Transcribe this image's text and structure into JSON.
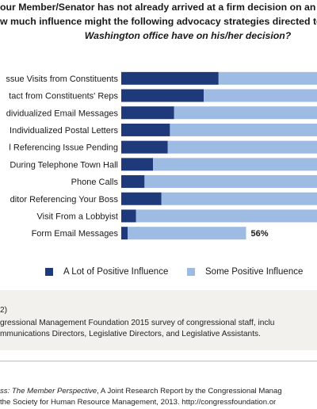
{
  "title": {
    "line1": "our Member/Senator has not already arrived at a firm decision on an i",
    "line2": "w much influence might the following advocacy strategies directed to",
    "line3": "Washington office have on his/her decision?"
  },
  "chart_data": {
    "type": "bar",
    "orientation": "horizontal",
    "stacked": true,
    "categories": [
      "ssue Visits from Constituents",
      "tact from Constituents' Reps",
      "dividualized Email Messages",
      "Individualized Postal Letters",
      "l Referencing Issue Pending",
      "During Telephone Town Hall",
      "Phone Calls",
      "ditor Referencing Your Boss",
      "Visit From a Lobbyist",
      "Form Email Messages"
    ],
    "series": [
      {
        "name": "A Lot of Positive Influence",
        "color": "#1f3a7a",
        "values": [
          46,
          39,
          25,
          23,
          22,
          15,
          11,
          19,
          7,
          3
        ]
      },
      {
        "name": "Some Positive Influence",
        "color": "#9dbbe3",
        "values": [
          54,
          61,
          75,
          77,
          78,
          85,
          89,
          81,
          93,
          56
        ]
      }
    ],
    "data_labels": [
      {
        "category_index": 9,
        "series_index": 1,
        "text": "56%"
      }
    ],
    "xlim": [
      0,
      100
    ],
    "legend": "bottom"
  },
  "notes": {
    "line1": "2)",
    "line2": "gressional Management Foundation 2015 survey of congressional staff, inclu",
    "line3": "mmunications Directors, Legislative Directors, and Legislative Assistants."
  },
  "source": {
    "line1_italic": "ss: The Member Perspective",
    "line1_rest": ", A Joint Research Report by the Congressional Manag",
    "line2": "the Society for Human Resource Management, 2013. http://congressfoundation.or"
  }
}
